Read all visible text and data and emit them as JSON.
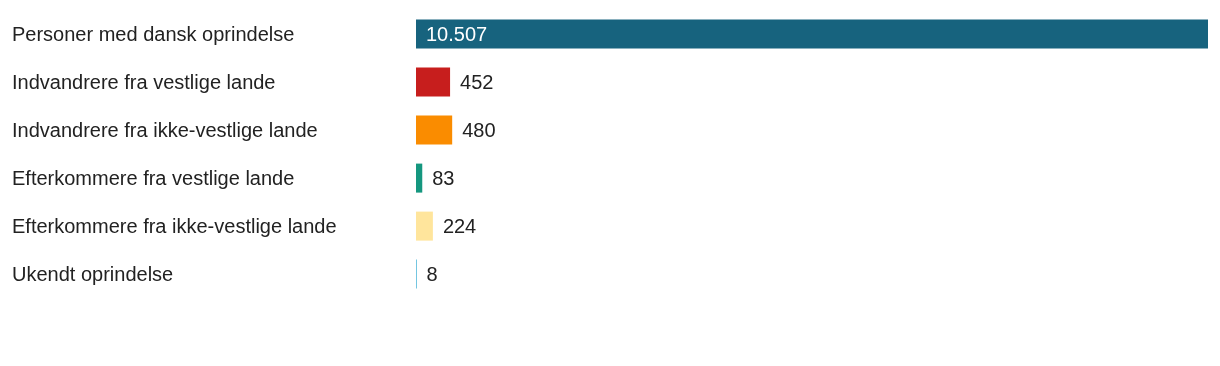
{
  "chart_data": {
    "type": "bar",
    "orientation": "horizontal",
    "categories": [
      "Personer med dansk oprindelse",
      "Indvandrere fra vestlige lande",
      "Indvandrere fra ikke-vestlige lande",
      "Efterkommere fra vestlige lande",
      "Efterkommere fra ikke-vestlige lande",
      "Ukendt oprindelse"
    ],
    "values": [
      10507,
      452,
      480,
      83,
      224,
      8
    ],
    "colors": [
      "#17637e",
      "#c71e1d",
      "#fa8c00",
      "#15977f",
      "#ffe59c",
      "#18a1cd"
    ],
    "value_labels": [
      "10.507",
      "452",
      "480",
      "83",
      "224",
      "8"
    ],
    "tick_labels": "y",
    "grid": false,
    "legend": false
  }
}
